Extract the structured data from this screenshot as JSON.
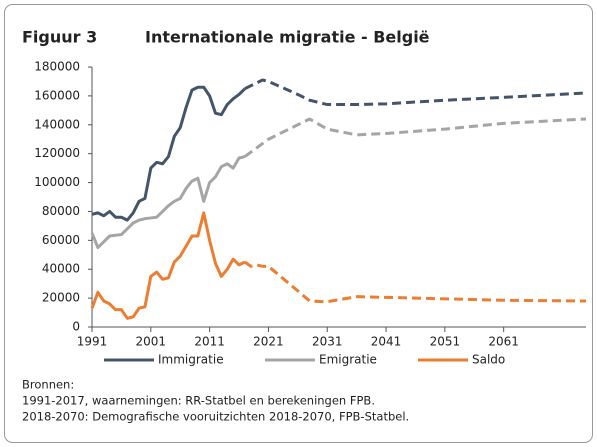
{
  "chart_data": {
    "type": "line",
    "figure": "Figuur 3",
    "title": "Internationale migratie - België",
    "x": [
      1991,
      1992,
      1993,
      1994,
      1995,
      1996,
      1997,
      1998,
      1999,
      2000,
      2001,
      2002,
      2003,
      2004,
      2005,
      2006,
      2007,
      2008,
      2009,
      2010,
      2011,
      2012,
      2013,
      2014,
      2015,
      2016,
      2017,
      2018,
      2019,
      2020,
      2021,
      2026,
      2028,
      2031,
      2036,
      2041,
      2051,
      2061,
      2075
    ],
    "series": [
      {
        "name": "Immigratie",
        "color": "#44546a",
        "values": [
          78000,
          79000,
          77000,
          80000,
          76000,
          76000,
          74000,
          79000,
          87000,
          89000,
          110000,
          114000,
          113000,
          118000,
          132000,
          138000,
          152000,
          164000,
          166000,
          166000,
          160000,
          148000,
          147000,
          154000,
          158000,
          161000,
          165000,
          null,
          null,
          null,
          null,
          null,
          null,
          null,
          null,
          null,
          null,
          null,
          null
        ],
        "forecast_values": [
          null,
          null,
          null,
          null,
          null,
          null,
          null,
          null,
          null,
          null,
          null,
          null,
          null,
          null,
          null,
          null,
          null,
          null,
          null,
          null,
          null,
          null,
          null,
          null,
          null,
          null,
          165000,
          167000,
          169000,
          171000,
          170000,
          161000,
          157000,
          154000,
          154000,
          154500,
          157000,
          159000,
          162000
        ]
      },
      {
        "name": "Emigratie",
        "color": "#a5a5a5",
        "values": [
          65000,
          55000,
          59000,
          63000,
          63500,
          64000,
          68000,
          72000,
          74000,
          75000,
          75500,
          76000,
          80000,
          84000,
          87000,
          89000,
          96000,
          101000,
          103000,
          87000,
          100000,
          104000,
          111000,
          113000,
          110000,
          117000,
          118000,
          null,
          null,
          null,
          null,
          null,
          null,
          null,
          null,
          null,
          null,
          null,
          null
        ],
        "forecast_values": [
          null,
          null,
          null,
          null,
          null,
          null,
          null,
          null,
          null,
          null,
          null,
          null,
          null,
          null,
          null,
          null,
          null,
          null,
          null,
          null,
          null,
          null,
          null,
          null,
          null,
          null,
          118000,
          121000,
          124000,
          127000,
          130000,
          140000,
          144000,
          137000,
          133000,
          134000,
          137000,
          141000,
          144000
        ]
      },
      {
        "name": "Saldo",
        "color": "#ed7d31",
        "values": [
          13000,
          24000,
          18000,
          16000,
          12000,
          12000,
          6000,
          7000,
          13000,
          14000,
          35000,
          38000,
          33000,
          34000,
          45000,
          49000,
          56000,
          63000,
          63000,
          79000,
          60000,
          44000,
          35000,
          40000,
          47000,
          43000,
          45000,
          null,
          null,
          null,
          null,
          null,
          null,
          null,
          null,
          null,
          null,
          null,
          null
        ],
        "forecast_values": [
          null,
          null,
          null,
          null,
          null,
          null,
          null,
          null,
          null,
          null,
          null,
          null,
          null,
          null,
          null,
          null,
          null,
          null,
          null,
          null,
          null,
          null,
          null,
          null,
          null,
          null,
          45000,
          42000,
          43000,
          42000,
          42000,
          25000,
          18000,
          17500,
          21000,
          20500,
          19500,
          18500,
          18000
        ]
      }
    ],
    "forecast_dashed": true,
    "xlim": [
      1991,
      2075
    ],
    "xticks": [
      1991,
      2001,
      2011,
      2021,
      2031,
      2041,
      2051,
      2061
    ],
    "ylim": [
      0,
      180000
    ],
    "yticks": [
      0,
      20000,
      40000,
      60000,
      80000,
      100000,
      120000,
      140000,
      160000,
      180000
    ],
    "grid": false,
    "legend": "bottom",
    "sources": [
      "Bronnen:",
      "1991-2017, waarnemingen: RR-Statbel en berekeningen FPB.",
      "2018-2070: Demografische vooruitzichten 2018-2070, FPB-Statbel."
    ]
  }
}
